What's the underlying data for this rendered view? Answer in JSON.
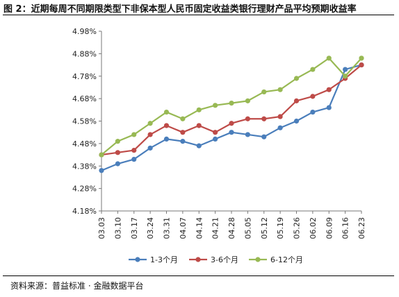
{
  "title": "图 2：近期每周不同期限类型下非保本型人民币固定收益类银行理财产品平均预期收益率",
  "source": "资料来源：普益标准 · 金融数据平台",
  "chart_data": {
    "type": "line",
    "title": "",
    "xlabel": "",
    "ylabel": "",
    "x": [
      "03.03",
      "03.10",
      "03.17",
      "03.24",
      "03.31",
      "04.07",
      "04.14",
      "04.21",
      "04.28",
      "05.05",
      "05.12",
      "05.19",
      "05.26",
      "06.02",
      "06.09",
      "06.16",
      "06.23"
    ],
    "ylim": [
      4.18,
      4.98
    ],
    "yticks": [
      "4.18%",
      "4.28%",
      "4.38%",
      "4.48%",
      "4.58%",
      "4.68%",
      "4.78%",
      "4.88%",
      "4.98%"
    ],
    "grid": "none",
    "legend_position": "bottom",
    "series": [
      {
        "name": "1-3个月",
        "color": "#4a7ebb",
        "values": [
          4.36,
          4.39,
          4.41,
          4.46,
          4.5,
          4.49,
          4.47,
          4.5,
          4.53,
          4.52,
          4.51,
          4.55,
          4.58,
          4.62,
          4.64,
          4.81,
          4.83
        ]
      },
      {
        "name": "3-6个月",
        "color": "#be4b48",
        "values": [
          4.43,
          4.44,
          4.45,
          4.52,
          4.56,
          4.53,
          4.56,
          4.53,
          4.57,
          4.59,
          4.59,
          4.6,
          4.67,
          4.69,
          4.72,
          4.77,
          4.83
        ]
      },
      {
        "name": "6-12个月",
        "color": "#98b954",
        "values": [
          4.43,
          4.49,
          4.52,
          4.57,
          4.62,
          4.59,
          4.63,
          4.65,
          4.66,
          4.67,
          4.71,
          4.72,
          4.77,
          4.81,
          4.86,
          4.78,
          4.86
        ]
      }
    ]
  }
}
